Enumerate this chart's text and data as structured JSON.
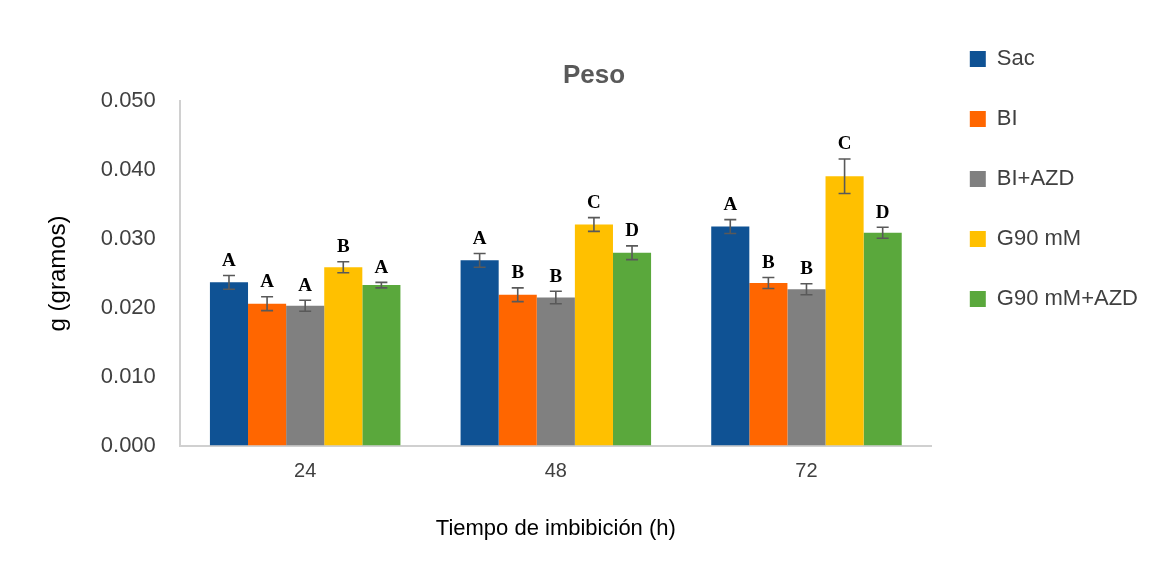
{
  "chart_data": {
    "type": "bar",
    "title": "Peso",
    "xlabel": "Tiempo de imbibición (h)",
    "ylabel": "g (gramos)",
    "categories": [
      "24",
      "48",
      "72"
    ],
    "series": [
      {
        "name": "Sac",
        "color": "#0f5294",
        "values": [
          0.0237,
          0.0269,
          0.0318
        ],
        "errors": [
          0.001,
          0.001,
          0.001
        ],
        "value_labels": [
          "A",
          "A",
          "A"
        ]
      },
      {
        "name": "BI",
        "color": "#ff6600",
        "values": [
          0.0206,
          0.0219,
          0.0236
        ],
        "errors": [
          0.001,
          0.001,
          0.0008
        ],
        "value_labels": [
          "A",
          "B",
          "B"
        ]
      },
      {
        "name": "BI+AZD",
        "color": "#808080",
        "values": [
          0.0203,
          0.0215,
          0.0227
        ],
        "errors": [
          0.0008,
          0.0009,
          0.0008
        ],
        "value_labels": [
          "A",
          "B",
          "B"
        ]
      },
      {
        "name": "G90 mM",
        "color": "#ffc000",
        "values": [
          0.0259,
          0.0321,
          0.0391
        ],
        "errors": [
          0.0008,
          0.001,
          0.0025
        ],
        "value_labels": [
          "B",
          "C",
          "C"
        ]
      },
      {
        "name": "G90 mM+AZD",
        "color": "#5aa83c",
        "values": [
          0.0233,
          0.028,
          0.0309
        ],
        "errors": [
          0.0004,
          0.001,
          0.0008
        ],
        "value_labels": [
          "A",
          "D",
          "D"
        ]
      }
    ],
    "ylim": [
      0,
      0.05
    ],
    "yticks": [
      {
        "value": 0,
        "label": "0.000"
      },
      {
        "value": 0.01,
        "label": "0.010"
      },
      {
        "value": 0.02,
        "label": "0.020"
      },
      {
        "value": 0.03,
        "label": "0.030"
      },
      {
        "value": 0.04,
        "label": "0.040"
      },
      {
        "value": 0.05,
        "label": "0.050"
      }
    ],
    "grid": false,
    "legend": "right"
  }
}
